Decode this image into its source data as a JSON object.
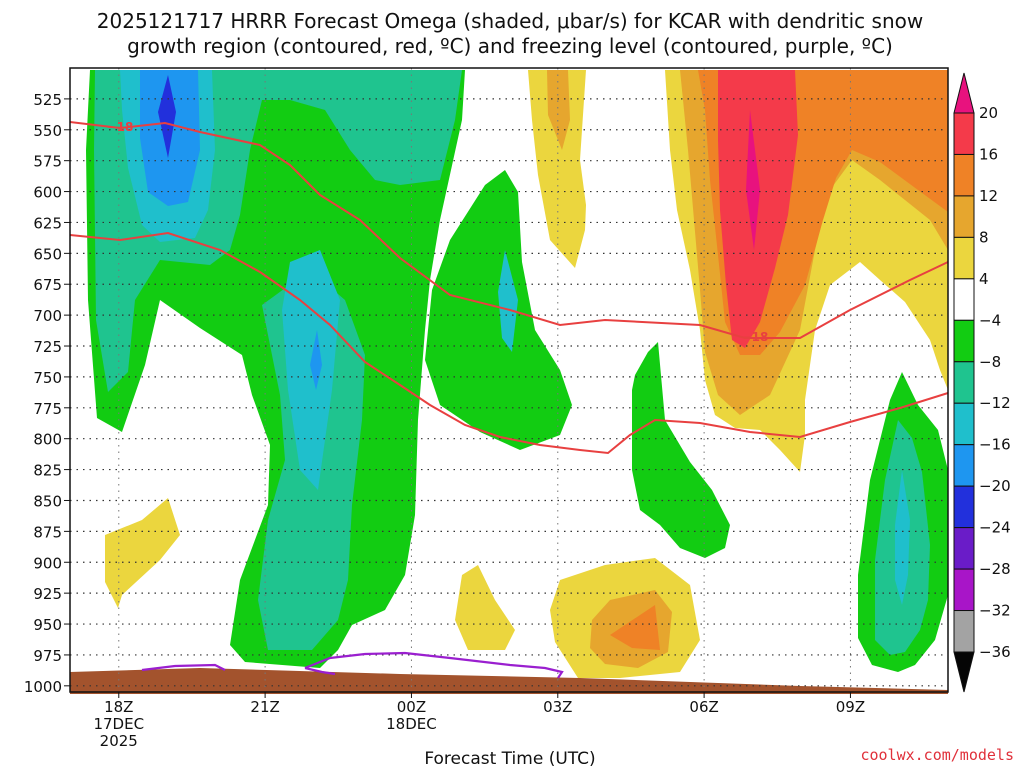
{
  "chart_data": {
    "type": "heatmap",
    "title_line1": "2025121717 HRRR Forecast Omega (shaded, μbar/s) for KCAR with dendritic snow",
    "title_line2": "growth region (contoured, red, ºC) and freezing level (contoured, purple, ºC)",
    "xlabel": "Forecast Time (UTC)",
    "credit": "coolwx.com/models",
    "x_ticks": [
      {
        "hour": 18,
        "lines": [
          "18Z",
          "17DEC",
          "2025"
        ]
      },
      {
        "hour": 21,
        "lines": [
          "21Z"
        ]
      },
      {
        "hour": 24,
        "lines": [
          "00Z",
          "18DEC"
        ]
      },
      {
        "hour": 27,
        "lines": [
          "03Z"
        ]
      },
      {
        "hour": 30,
        "lines": [
          "06Z"
        ]
      },
      {
        "hour": 33,
        "lines": [
          "09Z"
        ]
      }
    ],
    "xlim": [
      17,
      35
    ],
    "y_ticks": [
      "525",
      "550",
      "575",
      "600",
      "625",
      "650",
      "675",
      "700",
      "725",
      "750",
      "775",
      "800",
      "825",
      "850",
      "875",
      "900",
      "925",
      "950",
      "975",
      "1000"
    ],
    "ylim_mb": [
      500,
      1005
    ],
    "colorbar": {
      "levels": [
        "20",
        "16",
        "12",
        "8",
        "4",
        "−4",
        "−8",
        "−12",
        "−16",
        "−20",
        "−24",
        "−28",
        "−32",
        "−36"
      ],
      "colors": [
        "#e8127e",
        "#f43a4a",
        "#ef8226",
        "#e6a62e",
        "#ebd63e",
        "#ffffff",
        "#12cc12",
        "#1fc48f",
        "#1fbfcc",
        "#1e96f0",
        "#2230dc",
        "#6a1cc8",
        "#a815c8",
        "#a3a3a3",
        "#050505"
      ]
    },
    "contour_labels": [
      "−18",
      "−18"
    ],
    "colors": {
      "dendritic_line": "#e84040",
      "freezing_line": "#9a1fcf",
      "terrain": "#a3532d"
    }
  }
}
